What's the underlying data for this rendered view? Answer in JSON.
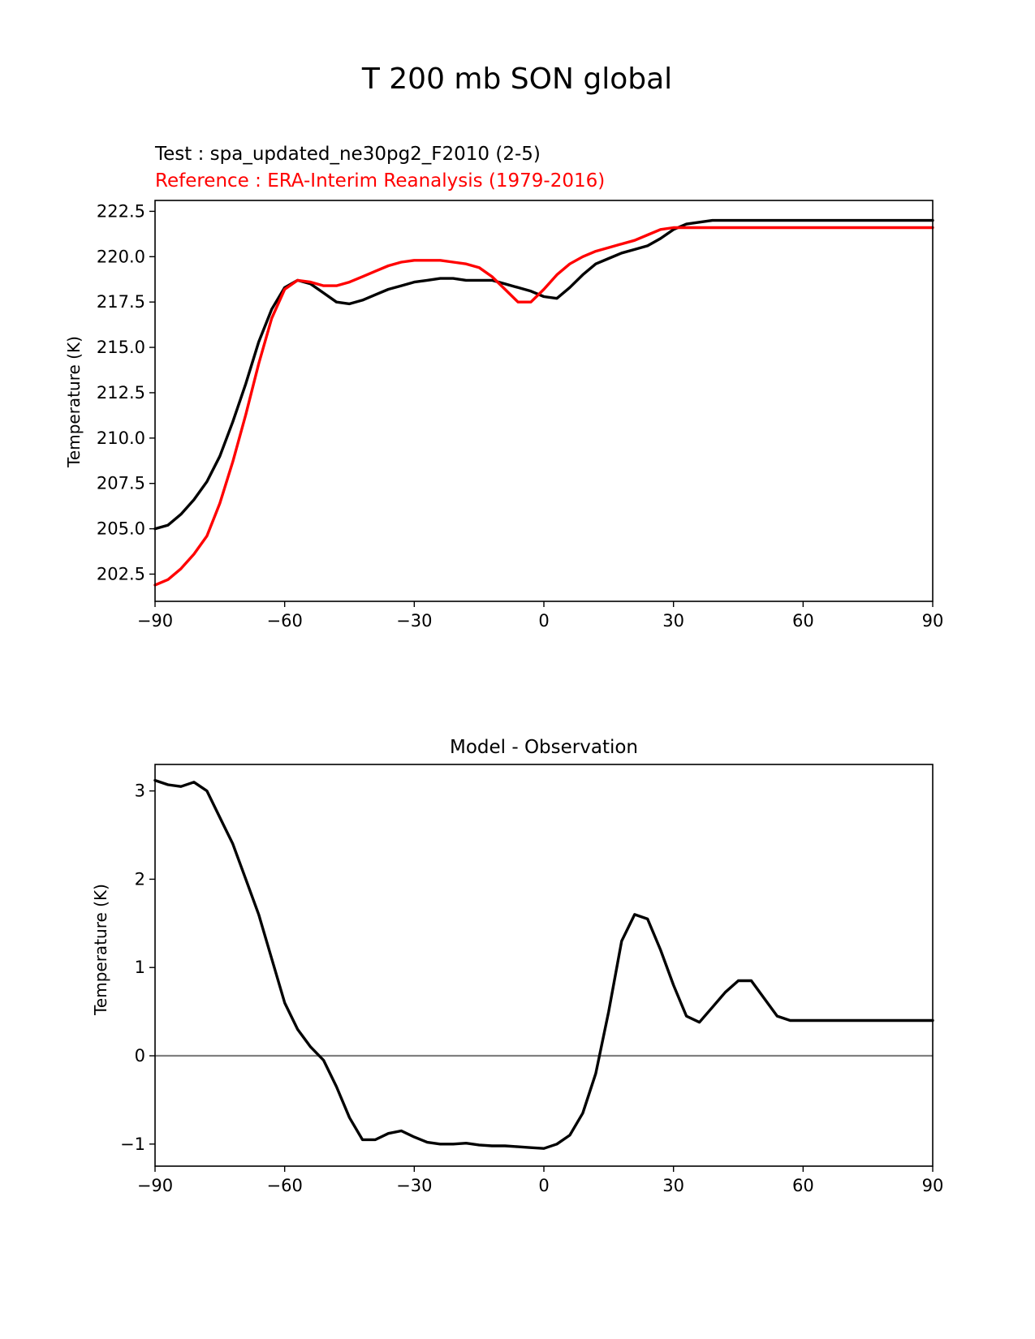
{
  "figure_title": "T 200 mb SON global",
  "colors": {
    "test": "#000000",
    "reference": "#ff0000",
    "zero_line": "#808080"
  },
  "chart_data": [
    {
      "type": "line",
      "subtitle_test": "Test : spa_updated_ne30pg2_F2010 (2-5)",
      "subtitle_reference": "Reference : ERA-Interim Reanalysis (1979-2016)",
      "xlabel": "",
      "ylabel": "Temperature (K)",
      "xlim": [
        -90,
        90
      ],
      "ylim": [
        201,
        223.1
      ],
      "xticks": [
        -90,
        -60,
        -30,
        0,
        30,
        60,
        90
      ],
      "xtick_labels": [
        "−90",
        "−60",
        "−30",
        "0",
        "30",
        "60",
        "90"
      ],
      "yticks": [
        202.5,
        205.0,
        207.5,
        210.0,
        212.5,
        215.0,
        217.5,
        220.0,
        222.5
      ],
      "ytick_labels": [
        "202.5",
        "205.0",
        "207.5",
        "210.0",
        "212.5",
        "215.0",
        "217.5",
        "220.0",
        "222.5"
      ],
      "x": [
        -90,
        -87,
        -84,
        -81,
        -78,
        -75,
        -72,
        -69,
        -66,
        -63,
        -60,
        -57,
        -54,
        -51,
        -48,
        -45,
        -42,
        -39,
        -36,
        -33,
        -30,
        -27,
        -24,
        -21,
        -18,
        -15,
        -12,
        -9,
        -6,
        -3,
        0,
        3,
        6,
        9,
        12,
        15,
        18,
        21,
        24,
        27,
        30,
        33,
        36,
        39,
        42,
        45,
        48,
        51,
        54,
        57,
        60,
        63,
        66,
        69,
        72,
        75,
        78,
        81,
        84,
        87,
        90
      ],
      "series": [
        {
          "name": "Test",
          "color": "#000000",
          "values": [
            205.0,
            205.2,
            205.8,
            206.6,
            207.6,
            209.0,
            210.9,
            213.0,
            215.3,
            217.1,
            218.3,
            218.7,
            218.5,
            218.0,
            217.5,
            217.4,
            217.6,
            217.9,
            218.2,
            218.4,
            218.6,
            218.7,
            218.8,
            218.8,
            218.7,
            218.7,
            218.7,
            218.5,
            218.3,
            218.1,
            217.8,
            217.7,
            218.3,
            219.0,
            219.6,
            219.9,
            220.2,
            220.4,
            220.6,
            221.0,
            221.5,
            221.8,
            221.9,
            222.0,
            222.0,
            222.0,
            222.0,
            222.0,
            222.0,
            222.0,
            222.0,
            222.0,
            222.0,
            222.0,
            222.0,
            222.0,
            222.0,
            222.0,
            222.0,
            222.0,
            222.0
          ]
        },
        {
          "name": "Reference",
          "color": "#ff0000",
          "values": [
            201.9,
            202.2,
            202.8,
            203.6,
            204.6,
            206.4,
            208.7,
            211.3,
            214.1,
            216.6,
            218.2,
            218.7,
            218.6,
            218.4,
            218.4,
            218.6,
            218.9,
            219.2,
            219.5,
            219.7,
            219.8,
            219.8,
            219.8,
            219.7,
            219.6,
            219.4,
            218.9,
            218.2,
            217.5,
            217.5,
            218.2,
            219.0,
            219.6,
            220.0,
            220.3,
            220.5,
            220.7,
            220.9,
            221.2,
            221.5,
            221.6,
            221.6,
            221.6,
            221.6,
            221.6,
            221.6,
            221.6,
            221.6,
            221.6,
            221.6,
            221.6,
            221.6,
            221.6,
            221.6,
            221.6,
            221.6,
            221.6,
            221.6,
            221.6,
            221.6,
            221.6
          ]
        }
      ]
    },
    {
      "type": "line",
      "title": "Model - Observation",
      "xlabel": "",
      "ylabel": "Temperature (K)",
      "xlim": [
        -90,
        90
      ],
      "ylim": [
        -1.25,
        3.3
      ],
      "xticks": [
        -90,
        -60,
        -30,
        0,
        30,
        60,
        90
      ],
      "xtick_labels": [
        "−90",
        "−60",
        "−30",
        "0",
        "30",
        "60",
        "90"
      ],
      "yticks": [
        -1,
        0,
        1,
        2,
        3
      ],
      "ytick_labels": [
        "−1",
        "0",
        "1",
        "2",
        "3"
      ],
      "zero_line": 0,
      "x": [
        -90,
        -87,
        -84,
        -81,
        -78,
        -75,
        -72,
        -69,
        -66,
        -63,
        -60,
        -57,
        -54,
        -51,
        -48,
        -45,
        -42,
        -39,
        -36,
        -33,
        -30,
        -27,
        -24,
        -21,
        -18,
        -15,
        -12,
        -9,
        -6,
        -3,
        0,
        3,
        6,
        9,
        12,
        15,
        18,
        21,
        24,
        27,
        30,
        33,
        36,
        39,
        42,
        45,
        48,
        51,
        54,
        57,
        60,
        63,
        66,
        69,
        72,
        75,
        78,
        81,
        84,
        87,
        90
      ],
      "series": [
        {
          "name": "Model - Observation",
          "color": "#000000",
          "values": [
            3.12,
            3.07,
            3.05,
            3.1,
            3.0,
            2.7,
            2.4,
            2.0,
            1.6,
            1.1,
            0.6,
            0.3,
            0.1,
            -0.05,
            -0.35,
            -0.7,
            -0.95,
            -0.95,
            -0.88,
            -0.85,
            -0.92,
            -0.98,
            -1.0,
            -1.0,
            -0.99,
            -1.01,
            -1.02,
            -1.02,
            -1.03,
            -1.04,
            -1.05,
            -1.0,
            -0.9,
            -0.65,
            -0.2,
            0.5,
            1.3,
            1.6,
            1.55,
            1.2,
            0.8,
            0.45,
            0.38,
            0.55,
            0.72,
            0.85,
            0.85,
            0.65,
            0.45,
            0.4,
            0.4,
            0.4,
            0.4,
            0.4,
            0.4,
            0.4,
            0.4,
            0.4,
            0.4,
            0.4,
            0.4
          ]
        }
      ]
    }
  ]
}
